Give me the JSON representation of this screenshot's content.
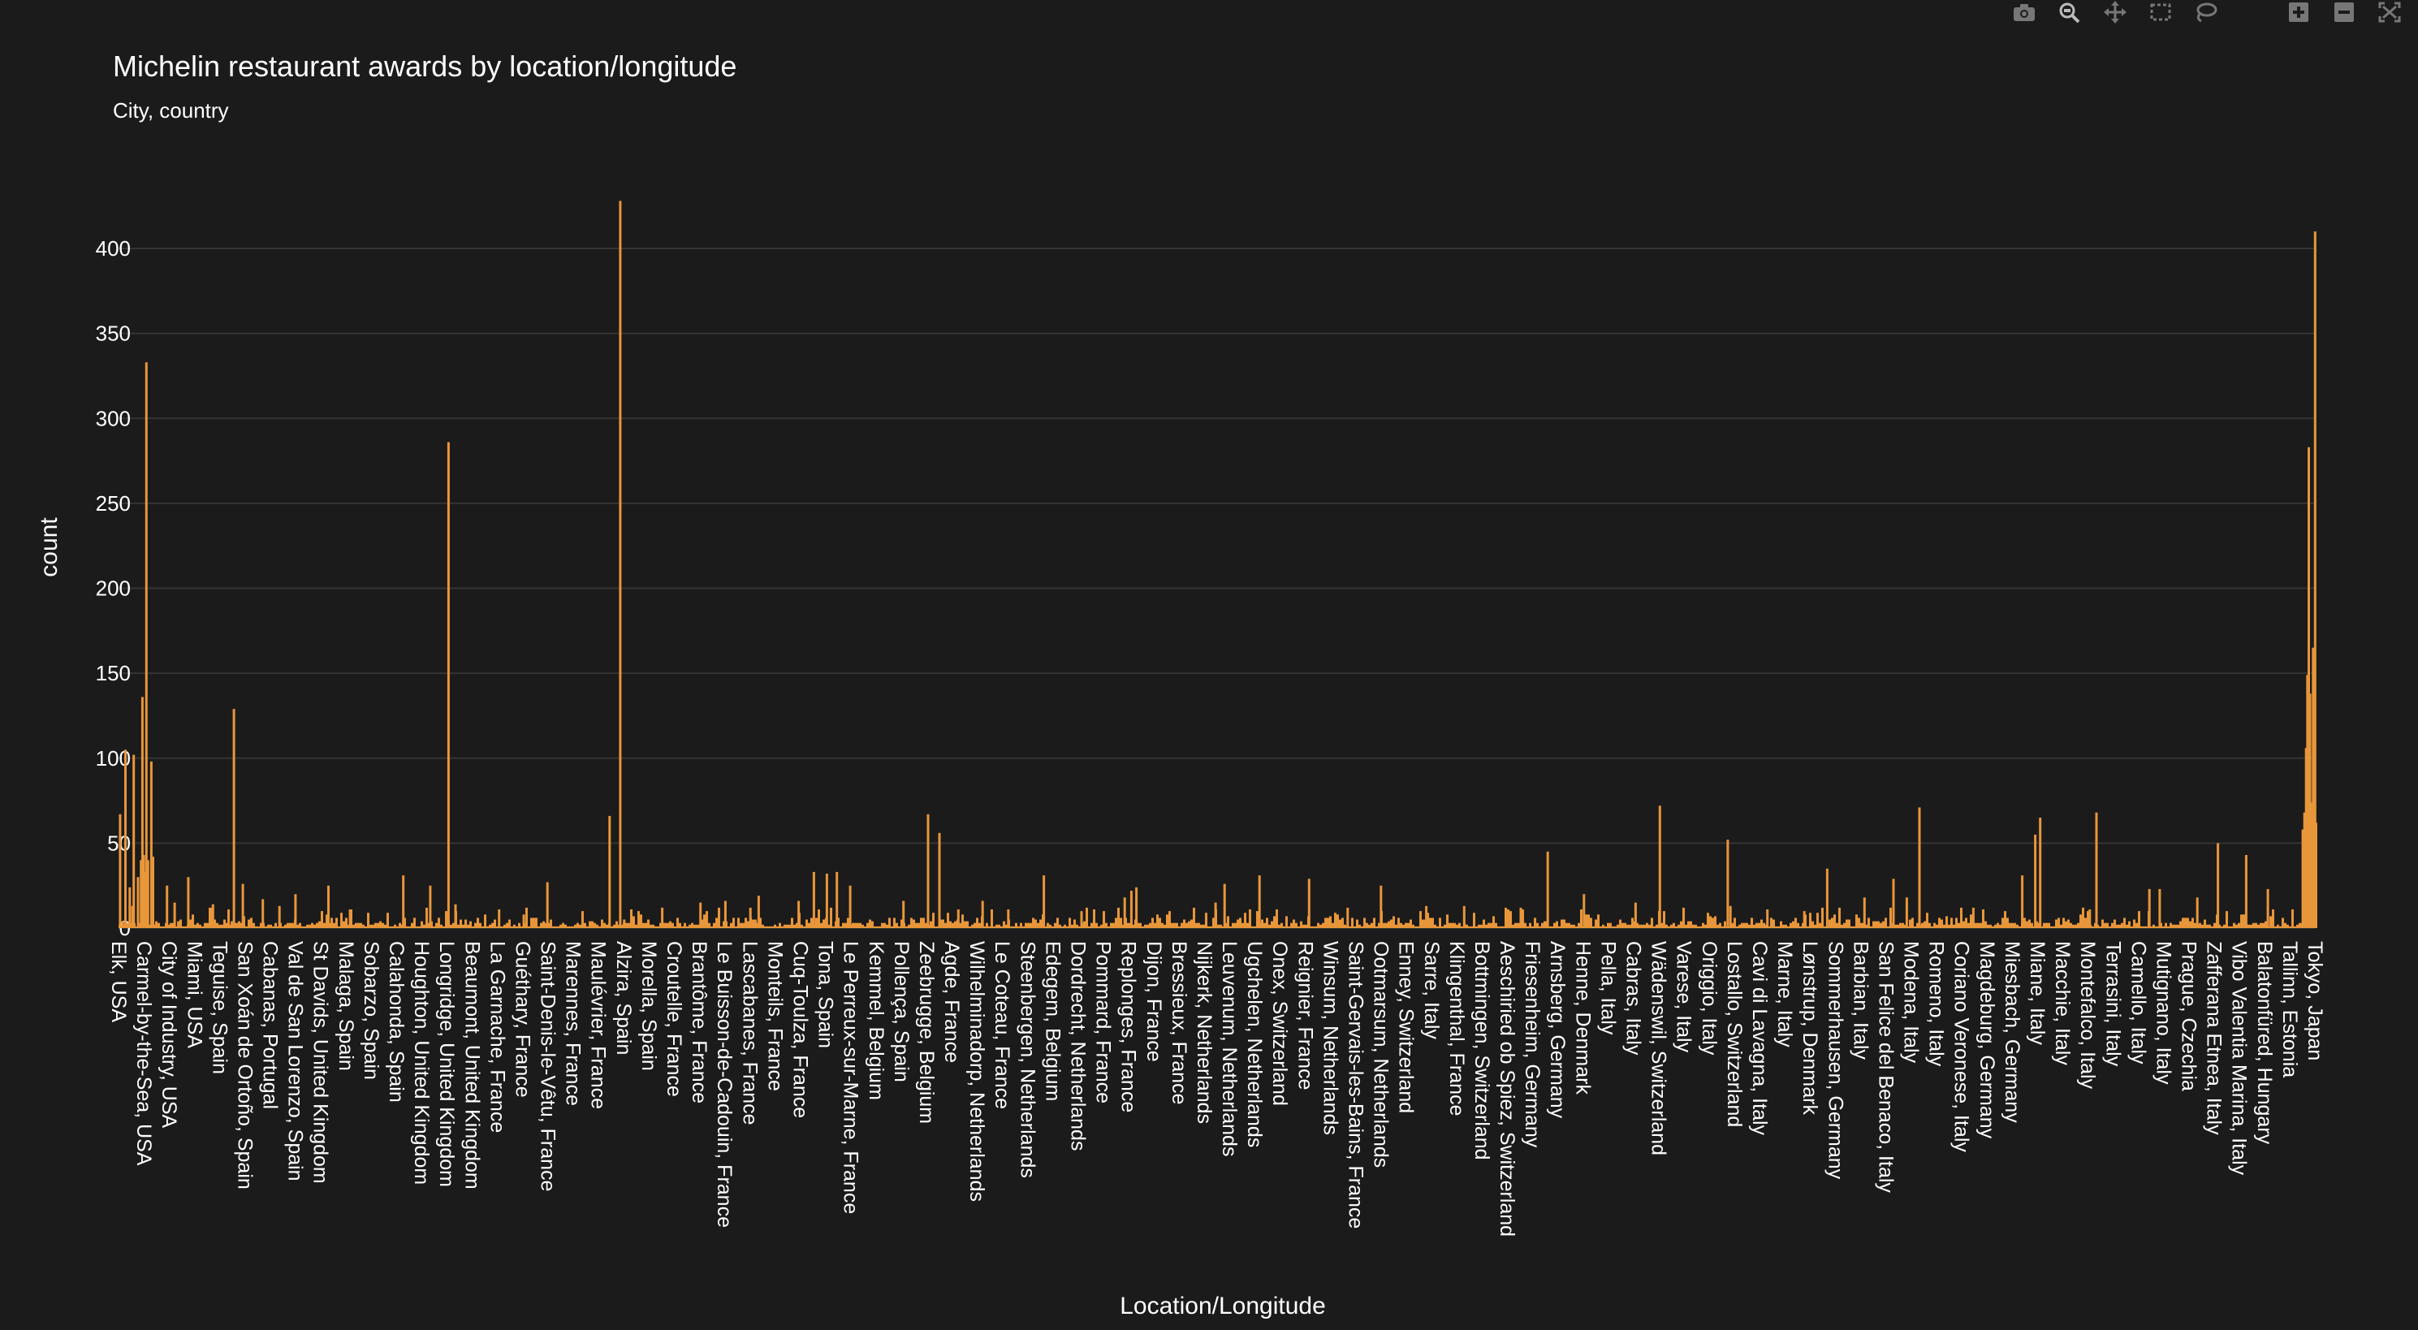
{
  "modebar": {
    "icons": [
      "camera-icon",
      "zoom-icon",
      "pan-icon",
      "box-select-icon",
      "lasso-select-icon",
      "zoom-in-icon",
      "zoom-out-icon",
      "autoscale-icon"
    ]
  },
  "colors": {
    "bar": "#e8963a",
    "background": "#1b1b1b",
    "grid": "#343434"
  },
  "chart_data": {
    "type": "bar",
    "title": "Michelin restaurant awards by location/longitude",
    "subtitle": "City, country",
    "xlabel": "Location/Longitude",
    "ylabel": "count",
    "ylim": [
      0,
      428
    ],
    "yticks": [
      0,
      50,
      100,
      150,
      200,
      250,
      300,
      350,
      400
    ],
    "grid": true,
    "categories": [
      "Elk, USA",
      "Carmel-by-the-Sea, USA",
      "City of Industry, USA",
      "Miami, USA",
      "Teguise, Spain",
      "San Xoán de Ortoño, Spain",
      "Cabanas, Portugal",
      "Val de San Lorenzo, Spain",
      "St Davids, United Kingdom",
      "Malaga, Spain",
      "Sobarzo, Spain",
      "Calahonda, Spain",
      "Houghton, United Kingdom",
      "Longridge, United Kingdom",
      "Beaumont, United Kingdom",
      "La Garnache, France",
      "Guéthary, France",
      "Saint-Denis-le-Vêtu, France",
      "Marennes, France",
      "Maulévrier, France",
      "Alzira, Spain",
      "Morella, Spain",
      "Croutelle, France",
      "Brantôme, France",
      "Le Buisson-de-Cadouin, France",
      "Lascabanes, France",
      "Monteils, France",
      "Cuq-Toulza, France",
      "Tona, Spain",
      "Le Perreux-sur-Marne, France",
      "Kemmel, Belgium",
      "Pollença, Spain",
      "Zeebrugge, Belgium",
      "Agde, France",
      "Wilhelminadorp, Netherlands",
      "Le Coteau, France",
      "Steenbergen, Netherlands",
      "Edegem, Belgium",
      "Dordrecht, Netherlands",
      "Pommard, France",
      "Replonges, France",
      "Dijon, France",
      "Bressieux, France",
      "Nijkerk, Netherlands",
      "Leuvenum, Netherlands",
      "Ugchelen, Netherlands",
      "Onex, Switzerland",
      "Reignier, France",
      "Winsum, Netherlands",
      "Saint-Gervais-les-Bains, France",
      "Ootmarsum, Netherlands",
      "Enney, Switzerland",
      "Sarre, Italy",
      "Klingenthal, France",
      "Bottmingen, Switzerland",
      "Aeschiried ob Spiez, Switzerland",
      "Friesenheim, Germany",
      "Arnsberg, Germany",
      "Henne, Denmark",
      "Pella, Italy",
      "Cabras, Italy",
      "Wädenswil, Switzerland",
      "Varese, Italy",
      "Origgio, Italy",
      "Lostallo, Switzerland",
      "Cavi di Lavagna, Italy",
      "Marne, Italy",
      "Lønstrup, Denmark",
      "Sommerhausen, Germany",
      "Barbian, Italy",
      "San Felice del Benaco, Italy",
      "Modena, Italy",
      "Romeno, Italy",
      "Coriano Veronese, Italy",
      "Magdeburg, Germany",
      "Miesbach, Germany",
      "Miane, Italy",
      "Macchie, Italy",
      "Montefalco, Italy",
      "Terrasini, Italy",
      "Camello, Italy",
      "Mutignano, Italy",
      "Prague, Czechia",
      "Zafferana Etnea, Italy",
      "Vibo Valentia Marina, Italy",
      "Balatonfüred, Hungary",
      "Tallinn, Estonia",
      "Tokyo, Japan"
    ],
    "peaks": [
      {
        "pos": 0.01,
        "value": 67
      },
      {
        "pos": 0.09,
        "value": 4
      },
      {
        "pos": 0.17,
        "value": 105
      },
      {
        "pos": 0.3,
        "value": 24
      },
      {
        "pos": 0.38,
        "value": 13
      },
      {
        "pos": 0.42,
        "value": 102
      },
      {
        "pos": 0.55,
        "value": 30
      },
      {
        "pos": 0.64,
        "value": 40
      },
      {
        "pos": 0.68,
        "value": 136
      },
      {
        "pos": 0.72,
        "value": 43
      },
      {
        "pos": 0.76,
        "value": 33
      },
      {
        "pos": 0.8,
        "value": 333
      },
      {
        "pos": 0.85,
        "value": 40
      },
      {
        "pos": 0.95,
        "value": 98
      },
      {
        "pos": 1.0,
        "value": 42
      },
      {
        "pos": 1.42,
        "value": 25
      },
      {
        "pos": 1.65,
        "value": 15
      },
      {
        "pos": 2.06,
        "value": 30
      },
      {
        "pos": 2.8,
        "value": 14
      },
      {
        "pos": 3.27,
        "value": 11
      },
      {
        "pos": 3.43,
        "value": 129
      },
      {
        "pos": 3.7,
        "value": 26
      },
      {
        "pos": 4.3,
        "value": 17
      },
      {
        "pos": 4.8,
        "value": 13
      },
      {
        "pos": 5.28,
        "value": 20
      },
      {
        "pos": 6.27,
        "value": 25
      },
      {
        "pos": 6.92,
        "value": 11
      },
      {
        "pos": 8.52,
        "value": 31
      },
      {
        "pos": 9.33,
        "value": 25
      },
      {
        "pos": 9.88,
        "value": 286
      },
      {
        "pos": 10.09,
        "value": 14
      },
      {
        "pos": 11.4,
        "value": 11
      },
      {
        "pos": 12.14,
        "value": 8
      },
      {
        "pos": 12.85,
        "value": 27
      },
      {
        "pos": 14.72,
        "value": 66
      },
      {
        "pos": 15.04,
        "value": 428
      },
      {
        "pos": 15.16,
        "value": 5
      },
      {
        "pos": 16.3,
        "value": 12
      },
      {
        "pos": 17.45,
        "value": 15
      },
      {
        "pos": 18.2,
        "value": 16
      },
      {
        "pos": 18.95,
        "value": 12
      },
      {
        "pos": 19.2,
        "value": 19
      },
      {
        "pos": 20.4,
        "value": 16
      },
      {
        "pos": 20.86,
        "value": 33
      },
      {
        "pos": 21.25,
        "value": 32
      },
      {
        "pos": 21.55,
        "value": 33
      },
      {
        "pos": 21.95,
        "value": 25
      },
      {
        "pos": 23.55,
        "value": 16
      },
      {
        "pos": 24.29,
        "value": 67
      },
      {
        "pos": 24.63,
        "value": 56
      },
      {
        "pos": 25.2,
        "value": 11
      },
      {
        "pos": 25.93,
        "value": 16
      },
      {
        "pos": 26.7,
        "value": 11
      },
      {
        "pos": 27.77,
        "value": 31
      },
      {
        "pos": 28.9,
        "value": 10
      },
      {
        "pos": 30.2,
        "value": 18
      },
      {
        "pos": 30.4,
        "value": 22
      },
      {
        "pos": 30.55,
        "value": 24
      },
      {
        "pos": 32.93,
        "value": 15
      },
      {
        "pos": 33.2,
        "value": 26
      },
      {
        "pos": 34.25,
        "value": 31
      },
      {
        "pos": 35.74,
        "value": 29
      },
      {
        "pos": 36.9,
        "value": 12
      },
      {
        "pos": 37.9,
        "value": 25
      },
      {
        "pos": 39.26,
        "value": 13
      },
      {
        "pos": 40.4,
        "value": 13
      },
      {
        "pos": 42.1,
        "value": 12
      },
      {
        "pos": 42.91,
        "value": 45
      },
      {
        "pos": 44.0,
        "value": 20
      },
      {
        "pos": 45.55,
        "value": 15
      },
      {
        "pos": 46.28,
        "value": 72
      },
      {
        "pos": 48.4,
        "value": 13
      },
      {
        "pos": 48.32,
        "value": 52
      },
      {
        "pos": 49.51,
        "value": 11
      },
      {
        "pos": 50.62,
        "value": 10
      },
      {
        "pos": 51.31,
        "value": 35
      },
      {
        "pos": 52.43,
        "value": 18
      },
      {
        "pos": 53.3,
        "value": 29
      },
      {
        "pos": 53.7,
        "value": 18
      },
      {
        "pos": 54.08,
        "value": 71
      },
      {
        "pos": 55.7,
        "value": 12
      },
      {
        "pos": 57.17,
        "value": 31
      },
      {
        "pos": 57.56,
        "value": 55
      },
      {
        "pos": 57.71,
        "value": 65
      },
      {
        "pos": 59.2,
        "value": 11
      },
      {
        "pos": 59.4,
        "value": 68
      },
      {
        "pos": 60.99,
        "value": 23
      },
      {
        "pos": 61.3,
        "value": 23
      },
      {
        "pos": 62.43,
        "value": 18
      },
      {
        "pos": 63.05,
        "value": 50
      },
      {
        "pos": 63.9,
        "value": 43
      },
      {
        "pos": 64.55,
        "value": 23
      },
      {
        "pos": 65.6,
        "value": 58
      },
      {
        "pos": 65.65,
        "value": 68
      },
      {
        "pos": 65.7,
        "value": 106
      },
      {
        "pos": 65.74,
        "value": 149
      },
      {
        "pos": 65.78,
        "value": 283
      },
      {
        "pos": 65.82,
        "value": 138
      },
      {
        "pos": 65.86,
        "value": 74
      },
      {
        "pos": 65.91,
        "value": 165
      },
      {
        "pos": 65.97,
        "value": 410
      },
      {
        "pos": 66.0,
        "value": 62
      }
    ]
  }
}
